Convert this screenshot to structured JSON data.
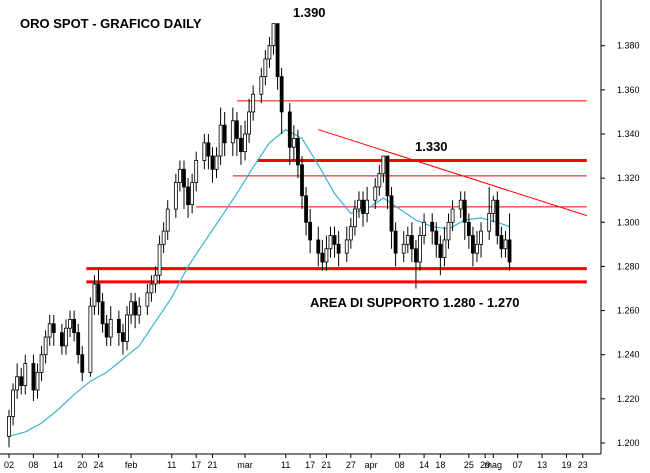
{
  "chart_data": {
    "type": "candlestick",
    "title": "ORO SPOT - GRAFICO DAILY",
    "y_ticks": [
      "1.200",
      "1.220",
      "1.240",
      "1.260",
      "1.280",
      "1.300",
      "1.320",
      "1.340",
      "1.360",
      "1.380"
    ],
    "ylim": [
      1.195,
      1.398
    ],
    "x_ticks": [
      {
        "label": "02",
        "day": 0
      },
      {
        "label": "08",
        "day": 6
      },
      {
        "label": "14",
        "day": 12
      },
      {
        "label": "20",
        "day": 18
      },
      {
        "label": "24",
        "day": 22
      },
      {
        "label": "feb",
        "day": 30
      },
      {
        "label": "11",
        "day": 40
      },
      {
        "label": "17",
        "day": 46
      },
      {
        "label": "21",
        "day": 50
      },
      {
        "label": "mar",
        "day": 58
      },
      {
        "label": "11",
        "day": 68
      },
      {
        "label": "17",
        "day": 74
      },
      {
        "label": "21",
        "day": 78
      },
      {
        "label": "27",
        "day": 84
      },
      {
        "label": "apr",
        "day": 89
      },
      {
        "label": "08",
        "day": 96
      },
      {
        "label": "14",
        "day": 102
      },
      {
        "label": "18",
        "day": 106
      },
      {
        "label": "25",
        "day": 113
      },
      {
        "label": "29",
        "day": 117
      },
      {
        "label": "mag",
        "day": 119
      },
      {
        "label": "07",
        "day": 125
      },
      {
        "label": "13",
        "day": 131
      },
      {
        "label": "19",
        "day": 137
      },
      {
        "label": "23",
        "day": 141
      }
    ],
    "candles": [
      [
        0,
        1.203,
        1.212,
        1.198,
        1.215
      ],
      [
        1,
        1.212,
        1.224,
        1.208,
        1.227
      ],
      [
        2,
        1.224,
        1.23,
        1.22,
        1.236
      ],
      [
        3,
        1.23,
        1.226,
        1.222,
        1.234
      ],
      [
        4,
        1.226,
        1.236,
        1.222,
        1.24
      ],
      [
        6,
        1.236,
        1.224,
        1.219,
        1.24
      ],
      [
        7,
        1.224,
        1.232,
        1.22,
        1.236
      ],
      [
        8,
        1.232,
        1.24,
        1.228,
        1.244
      ],
      [
        9,
        1.24,
        1.248,
        1.236,
        1.251
      ],
      [
        10,
        1.248,
        1.254,
        1.244,
        1.258
      ],
      [
        11,
        1.254,
        1.25,
        1.244,
        1.258
      ],
      [
        13,
        1.25,
        1.244,
        1.24,
        1.254
      ],
      [
        14,
        1.244,
        1.252,
        1.24,
        1.256
      ],
      [
        15,
        1.252,
        1.256,
        1.248,
        1.26
      ],
      [
        16,
        1.256,
        1.25,
        1.246,
        1.26
      ],
      [
        17,
        1.25,
        1.24,
        1.236,
        1.254
      ],
      [
        18,
        1.24,
        1.232,
        1.228,
        1.244
      ],
      [
        20,
        1.232,
        1.262,
        1.23,
        1.266
      ],
      [
        21,
        1.262,
        1.272,
        1.258,
        1.276
      ],
      [
        22,
        1.272,
        1.264,
        1.258,
        1.279
      ],
      [
        23,
        1.264,
        1.254,
        1.25,
        1.268
      ],
      [
        24,
        1.254,
        1.248,
        1.244,
        1.258
      ],
      [
        25,
        1.248,
        1.256,
        1.244,
        1.262
      ],
      [
        27,
        1.256,
        1.25,
        1.244,
        1.26
      ],
      [
        28,
        1.25,
        1.246,
        1.24,
        1.254
      ],
      [
        29,
        1.246,
        1.258,
        1.242,
        1.262
      ],
      [
        30,
        1.258,
        1.264,
        1.254,
        1.268
      ],
      [
        31,
        1.264,
        1.258,
        1.252,
        1.268
      ],
      [
        32,
        1.258,
        1.262,
        1.254,
        1.266
      ],
      [
        34,
        1.262,
        1.268,
        1.258,
        1.272
      ],
      [
        35,
        1.268,
        1.272,
        1.264,
        1.276
      ],
      [
        36,
        1.272,
        1.276,
        1.268,
        1.28
      ],
      [
        37,
        1.276,
        1.29,
        1.272,
        1.294
      ],
      [
        38,
        1.29,
        1.296,
        1.286,
        1.3
      ],
      [
        39,
        1.296,
        1.306,
        1.292,
        1.31
      ],
      [
        41,
        1.306,
        1.318,
        1.302,
        1.322
      ],
      [
        42,
        1.318,
        1.324,
        1.314,
        1.328
      ],
      [
        43,
        1.324,
        1.316,
        1.306,
        1.328
      ],
      [
        44,
        1.316,
        1.308,
        1.302,
        1.32
      ],
      [
        45,
        1.308,
        1.318,
        1.304,
        1.322
      ],
      [
        46,
        1.318,
        1.328,
        1.314,
        1.332
      ],
      [
        48,
        1.328,
        1.336,
        1.324,
        1.34
      ],
      [
        49,
        1.336,
        1.33,
        1.324,
        1.34
      ],
      [
        50,
        1.33,
        1.324,
        1.318,
        1.334
      ],
      [
        51,
        1.324,
        1.33,
        1.32,
        1.334
      ],
      [
        52,
        1.33,
        1.344,
        1.326,
        1.352
      ],
      [
        53,
        1.344,
        1.336,
        1.33,
        1.35
      ],
      [
        55,
        1.336,
        1.346,
        1.33,
        1.352
      ],
      [
        56,
        1.346,
        1.338,
        1.33,
        1.35
      ],
      [
        57,
        1.338,
        1.332,
        1.326,
        1.344
      ],
      [
        58,
        1.332,
        1.34,
        1.328,
        1.346
      ],
      [
        59,
        1.34,
        1.35,
        1.336,
        1.356
      ],
      [
        60,
        1.35,
        1.358,
        1.346,
        1.362
      ],
      [
        62,
        1.358,
        1.366,
        1.354,
        1.37
      ],
      [
        63,
        1.366,
        1.374,
        1.362,
        1.378
      ],
      [
        64,
        1.374,
        1.38,
        1.37,
        1.384
      ],
      [
        65,
        1.38,
        1.39,
        1.376,
        1.39
      ],
      [
        66,
        1.39,
        1.366,
        1.36,
        1.39
      ],
      [
        67,
        1.366,
        1.35,
        1.34,
        1.37
      ],
      [
        69,
        1.35,
        1.334,
        1.326,
        1.354
      ],
      [
        70,
        1.334,
        1.338,
        1.328,
        1.344
      ],
      [
        71,
        1.338,
        1.326,
        1.32,
        1.342
      ],
      [
        72,
        1.326,
        1.312,
        1.306,
        1.33
      ],
      [
        73,
        1.312,
        1.3,
        1.294,
        1.316
      ],
      [
        74,
        1.3,
        1.292,
        1.286,
        1.306
      ],
      [
        76,
        1.292,
        1.286,
        1.28,
        1.298
      ],
      [
        77,
        1.286,
        1.282,
        1.278,
        1.292
      ],
      [
        78,
        1.282,
        1.288,
        1.278,
        1.294
      ],
      [
        79,
        1.288,
        1.294,
        1.284,
        1.298
      ],
      [
        80,
        1.294,
        1.29,
        1.284,
        1.298
      ],
      [
        81,
        1.29,
        1.286,
        1.28,
        1.296
      ],
      [
        83,
        1.286,
        1.292,
        1.282,
        1.298
      ],
      [
        84,
        1.292,
        1.298,
        1.288,
        1.302
      ],
      [
        85,
        1.298,
        1.306,
        1.294,
        1.31
      ],
      [
        86,
        1.306,
        1.31,
        1.302,
        1.314
      ],
      [
        87,
        1.31,
        1.304,
        1.298,
        1.314
      ],
      [
        88,
        1.304,
        1.31,
        1.3,
        1.316
      ],
      [
        90,
        1.31,
        1.316,
        1.306,
        1.32
      ],
      [
        91,
        1.316,
        1.322,
        1.312,
        1.326
      ],
      [
        92,
        1.322,
        1.33,
        1.318,
        1.33
      ],
      [
        93,
        1.33,
        1.312,
        1.306,
        1.33
      ],
      [
        94,
        1.312,
        1.296,
        1.288,
        1.316
      ],
      [
        95,
        1.296,
        1.286,
        1.28,
        1.3
      ],
      [
        97,
        1.286,
        1.29,
        1.282,
        1.296
      ],
      [
        98,
        1.29,
        1.294,
        1.286,
        1.298
      ],
      [
        99,
        1.294,
        1.288,
        1.282,
        1.3
      ],
      [
        100,
        1.288,
        1.282,
        1.27,
        1.292
      ],
      [
        101,
        1.282,
        1.294,
        1.278,
        1.298
      ],
      [
        102,
        1.294,
        1.3,
        1.29,
        1.304
      ],
      [
        104,
        1.3,
        1.296,
        1.29,
        1.304
      ],
      [
        105,
        1.296,
        1.29,
        1.284,
        1.3
      ],
      [
        106,
        1.29,
        1.284,
        1.276,
        1.294
      ],
      [
        107,
        1.284,
        1.292,
        1.28,
        1.298
      ],
      [
        108,
        1.292,
        1.3,
        1.288,
        1.304
      ],
      [
        109,
        1.3,
        1.306,
        1.296,
        1.31
      ],
      [
        111,
        1.306,
        1.31,
        1.302,
        1.314
      ],
      [
        112,
        1.31,
        1.3,
        1.292,
        1.314
      ],
      [
        113,
        1.3,
        1.294,
        1.288,
        1.304
      ],
      [
        114,
        1.294,
        1.286,
        1.28,
        1.298
      ],
      [
        115,
        1.286,
        1.29,
        1.282,
        1.296
      ],
      [
        116,
        1.29,
        1.296,
        1.284,
        1.3
      ],
      [
        118,
        1.296,
        1.304,
        1.292,
        1.316
      ],
      [
        119,
        1.304,
        1.31,
        1.3,
        1.312
      ],
      [
        120,
        1.31,
        1.294,
        1.29,
        1.314
      ],
      [
        121,
        1.294,
        1.288,
        1.284,
        1.298
      ],
      [
        122,
        1.288,
        1.292,
        1.284,
        1.296
      ],
      [
        123,
        1.292,
        1.282,
        1.278,
        1.304
      ]
    ],
    "ma": [
      [
        0,
        1.203
      ],
      [
        4,
        1.205
      ],
      [
        8,
        1.209
      ],
      [
        12,
        1.215
      ],
      [
        16,
        1.222
      ],
      [
        20,
        1.228
      ],
      [
        24,
        1.232
      ],
      [
        28,
        1.238
      ],
      [
        32,
        1.244
      ],
      [
        36,
        1.255
      ],
      [
        40,
        1.266
      ],
      [
        44,
        1.28
      ],
      [
        48,
        1.291
      ],
      [
        52,
        1.302
      ],
      [
        56,
        1.313
      ],
      [
        60,
        1.325
      ],
      [
        64,
        1.336
      ],
      [
        68,
        1.342
      ],
      [
        72,
        1.338
      ],
      [
        76,
        1.326
      ],
      [
        80,
        1.313
      ],
      [
        84,
        1.304
      ],
      [
        88,
        1.306
      ],
      [
        92,
        1.311
      ],
      [
        96,
        1.306
      ],
      [
        100,
        1.301
      ],
      [
        104,
        1.298
      ],
      [
        108,
        1.297
      ],
      [
        112,
        1.301
      ],
      [
        116,
        1.302
      ],
      [
        120,
        1.3
      ],
      [
        123,
        1.298
      ]
    ],
    "horizontal_lines": [
      {
        "price": 1.355,
        "x0_day": 56,
        "x1_day": 142,
        "width": 1
      },
      {
        "price": 1.328,
        "x0_day": 61,
        "x1_day": 142,
        "width": 3
      },
      {
        "price": 1.321,
        "x0_day": 55,
        "x1_day": 142,
        "width": 1
      },
      {
        "price": 1.307,
        "x0_day": 46,
        "x1_day": 142,
        "width": 1
      },
      {
        "price": 1.279,
        "x0_day": 19,
        "x1_day": 142,
        "width": 3
      },
      {
        "price": 1.273,
        "x0_day": 19,
        "x1_day": 142,
        "width": 3
      }
    ],
    "trendline": {
      "x0_day": 76,
      "y0": 1.342,
      "x1_day": 142,
      "y1": 1.303
    },
    "colors": {
      "support_line": "#ff0000",
      "ma_line": "#3bb3ce",
      "candle": "#000000",
      "axis": "#000000"
    },
    "annotations": {
      "high_top": "1.390",
      "high_mid": "1.330",
      "support_label": "AREA DI SUPPORTO 1.280 - 1.270"
    }
  }
}
